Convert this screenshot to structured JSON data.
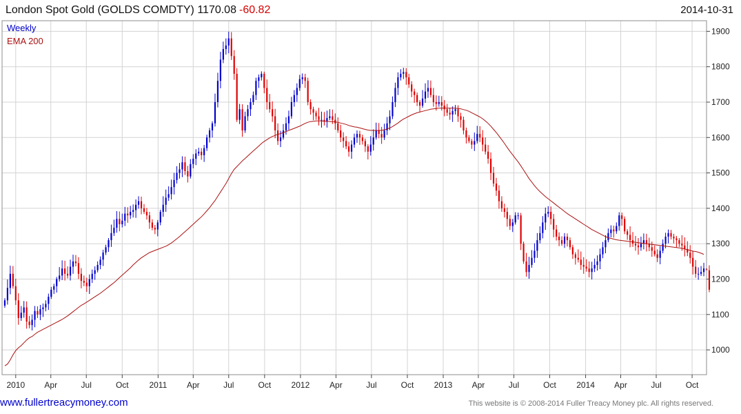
{
  "header": {
    "title": "London Spot Gold (GOLDS COMDTY) 1170.08",
    "change": "-60.82",
    "date": "2014-10-31"
  },
  "legend": {
    "frequency": "Weekly",
    "indicator": "EMA 200"
  },
  "footer": {
    "url": "www.fullertreacymoney.com",
    "copyright": "This website is © 2008-2014 Fuller Treacy Money plc. All rights reserved."
  },
  "colors": {
    "up": "#0000cc",
    "down": "#dd0000",
    "ema": "#aa1111",
    "grid": "#d3d3d3"
  },
  "chart_data": {
    "type": "candlestick",
    "frequency": "Weekly",
    "ylim": [
      930,
      1930
    ],
    "xlim": [
      "2009-11-27",
      "2014-11-07"
    ],
    "y_ticks": [
      1000,
      1100,
      1200,
      1300,
      1400,
      1500,
      1600,
      1700,
      1800,
      1900
    ],
    "x_ticks": [
      {
        "label": "2010",
        "date": "2010-01-01"
      },
      {
        "label": "Apr",
        "date": "2010-04-01"
      },
      {
        "label": "Jul",
        "date": "2010-07-01"
      },
      {
        "label": "Oct",
        "date": "2010-10-01"
      },
      {
        "label": "2011",
        "date": "2011-01-01"
      },
      {
        "label": "Apr",
        "date": "2011-04-01"
      },
      {
        "label": "Jul",
        "date": "2011-07-01"
      },
      {
        "label": "Oct",
        "date": "2011-10-01"
      },
      {
        "label": "2012",
        "date": "2012-01-01"
      },
      {
        "label": "Apr",
        "date": "2012-04-01"
      },
      {
        "label": "Jul",
        "date": "2012-07-01"
      },
      {
        "label": "Oct",
        "date": "2012-10-01"
      },
      {
        "label": "2013",
        "date": "2013-01-01"
      },
      {
        "label": "Apr",
        "date": "2013-04-01"
      },
      {
        "label": "Jul",
        "date": "2013-07-01"
      },
      {
        "label": "Oct",
        "date": "2013-10-01"
      },
      {
        "label": "2014",
        "date": "2014-01-01"
      },
      {
        "label": "Apr",
        "date": "2014-04-01"
      },
      {
        "label": "Jul",
        "date": "2014-07-01"
      },
      {
        "label": "Oct",
        "date": "2014-10-01"
      }
    ],
    "start_date": "2009-12-04",
    "closes": [
      1140,
      1175,
      1215,
      1180,
      1140,
      1090,
      1105,
      1120,
      1080,
      1070,
      1085,
      1110,
      1100,
      1115,
      1120,
      1130,
      1150,
      1170,
      1180,
      1200,
      1210,
      1230,
      1215,
      1210,
      1235,
      1250,
      1245,
      1215,
      1195,
      1190,
      1180,
      1200,
      1215,
      1225,
      1240,
      1255,
      1275,
      1290,
      1310,
      1330,
      1345,
      1370,
      1355,
      1365,
      1385,
      1380,
      1390,
      1395,
      1410,
      1420,
      1400,
      1390,
      1380,
      1360,
      1345,
      1340,
      1360,
      1390,
      1410,
      1430,
      1440,
      1460,
      1480,
      1500,
      1510,
      1530,
      1505,
      1490,
      1525,
      1540,
      1555,
      1560,
      1550,
      1570,
      1600,
      1620,
      1640,
      1700,
      1760,
      1820,
      1850,
      1860,
      1880,
      1830,
      1780,
      1650,
      1680,
      1620,
      1660,
      1680,
      1700,
      1720,
      1760,
      1770,
      1780,
      1740,
      1700,
      1680,
      1660,
      1620,
      1590,
      1600,
      1620,
      1640,
      1660,
      1700,
      1720,
      1740,
      1765,
      1770,
      1760,
      1700,
      1680,
      1670,
      1660,
      1650,
      1650,
      1645,
      1655,
      1660,
      1650,
      1640,
      1620,
      1600,
      1590,
      1575,
      1560,
      1580,
      1600,
      1610,
      1600,
      1590,
      1575,
      1560,
      1580,
      1600,
      1620,
      1610,
      1600,
      1620,
      1640,
      1660,
      1700,
      1740,
      1770,
      1780,
      1785,
      1770,
      1750,
      1730,
      1720,
      1700,
      1690,
      1710,
      1730,
      1740,
      1720,
      1700,
      1695,
      1700,
      1690,
      1680,
      1670,
      1665,
      1675,
      1680,
      1660,
      1650,
      1620,
      1600,
      1590,
      1580,
      1590,
      1610,
      1600,
      1580,
      1560,
      1540,
      1500,
      1470,
      1450,
      1420,
      1400,
      1390,
      1370,
      1350,
      1360,
      1380,
      1380,
      1300,
      1250,
      1220,
      1240,
      1260,
      1280,
      1310,
      1330,
      1360,
      1385,
      1390,
      1370,
      1340,
      1320,
      1310,
      1300,
      1320,
      1310,
      1290,
      1270,
      1260,
      1255,
      1240,
      1235,
      1230,
      1220,
      1230,
      1240,
      1250,
      1270,
      1290,
      1310,
      1330,
      1340,
      1335,
      1350,
      1380,
      1370,
      1335,
      1325,
      1310,
      1300,
      1295,
      1290,
      1300,
      1310,
      1300,
      1290,
      1280,
      1270,
      1260,
      1280,
      1300,
      1320,
      1330,
      1320,
      1315,
      1310,
      1300,
      1295,
      1285,
      1275,
      1260,
      1235,
      1215,
      1215,
      1220,
      1230,
      1225,
      1170
    ],
    "ema200": [
      955,
      960,
      972,
      986,
      998,
      1006,
      1012,
      1020,
      1028,
      1034,
      1038,
      1044,
      1050,
      1054,
      1058,
      1062,
      1066,
      1070,
      1074,
      1078,
      1082,
      1086,
      1091,
      1096,
      1102,
      1108,
      1114,
      1120,
      1126,
      1130,
      1135,
      1140,
      1145,
      1150,
      1155,
      1160,
      1166,
      1172,
      1178,
      1184,
      1190,
      1197,
      1204,
      1211,
      1218,
      1225,
      1232,
      1240,
      1247,
      1254,
      1260,
      1265,
      1270,
      1275,
      1278,
      1281,
      1284,
      1287,
      1290,
      1293,
      1297,
      1302,
      1308,
      1314,
      1320,
      1327,
      1334,
      1341,
      1348,
      1355,
      1362,
      1369,
      1376,
      1384,
      1393,
      1402,
      1412,
      1422,
      1434,
      1446,
      1458,
      1470,
      1484,
      1498,
      1510,
      1518,
      1526,
      1534,
      1541,
      1548,
      1555,
      1562,
      1569,
      1576,
      1583,
      1589,
      1594,
      1599,
      1603,
      1606,
      1609,
      1611,
      1614,
      1617,
      1620,
      1623,
      1626,
      1629,
      1632,
      1636,
      1640,
      1643,
      1645,
      1646,
      1647,
      1647,
      1647,
      1646,
      1646,
      1645,
      1645,
      1644,
      1643,
      1641,
      1639,
      1637,
      1634,
      1632,
      1630,
      1629,
      1627,
      1625,
      1623,
      1621,
      1620,
      1620,
      1620,
      1620,
      1620,
      1622,
      1624,
      1627,
      1631,
      1636,
      1641,
      1647,
      1652,
      1656,
      1660,
      1664,
      1667,
      1670,
      1672,
      1674,
      1676,
      1678,
      1680,
      1681,
      1682,
      1683,
      1683,
      1683,
      1683,
      1683,
      1683,
      1683,
      1682,
      1681,
      1679,
      1677,
      1674,
      1670,
      1666,
      1662,
      1658,
      1653,
      1647,
      1640,
      1632,
      1623,
      1614,
      1604,
      1594,
      1583,
      1572,
      1561,
      1551,
      1541,
      1531,
      1520,
      1508,
      1496,
      1484,
      1474,
      1464,
      1455,
      1447,
      1440,
      1433,
      1427,
      1421,
      1415,
      1409,
      1403,
      1397,
      1391,
      1385,
      1380,
      1375,
      1370,
      1365,
      1360,
      1355,
      1350,
      1345,
      1340,
      1336,
      1332,
      1328,
      1324,
      1320,
      1317,
      1315,
      1313,
      1311,
      1310,
      1309,
      1308,
      1307,
      1306,
      1305,
      1304,
      1303,
      1302,
      1301,
      1300,
      1299,
      1298,
      1297,
      1296,
      1295,
      1294,
      1293,
      1292,
      1291,
      1290,
      1289,
      1288,
      1287,
      1285,
      1283,
      1281,
      1279,
      1278,
      1276,
      1273,
      1270
    ]
  }
}
